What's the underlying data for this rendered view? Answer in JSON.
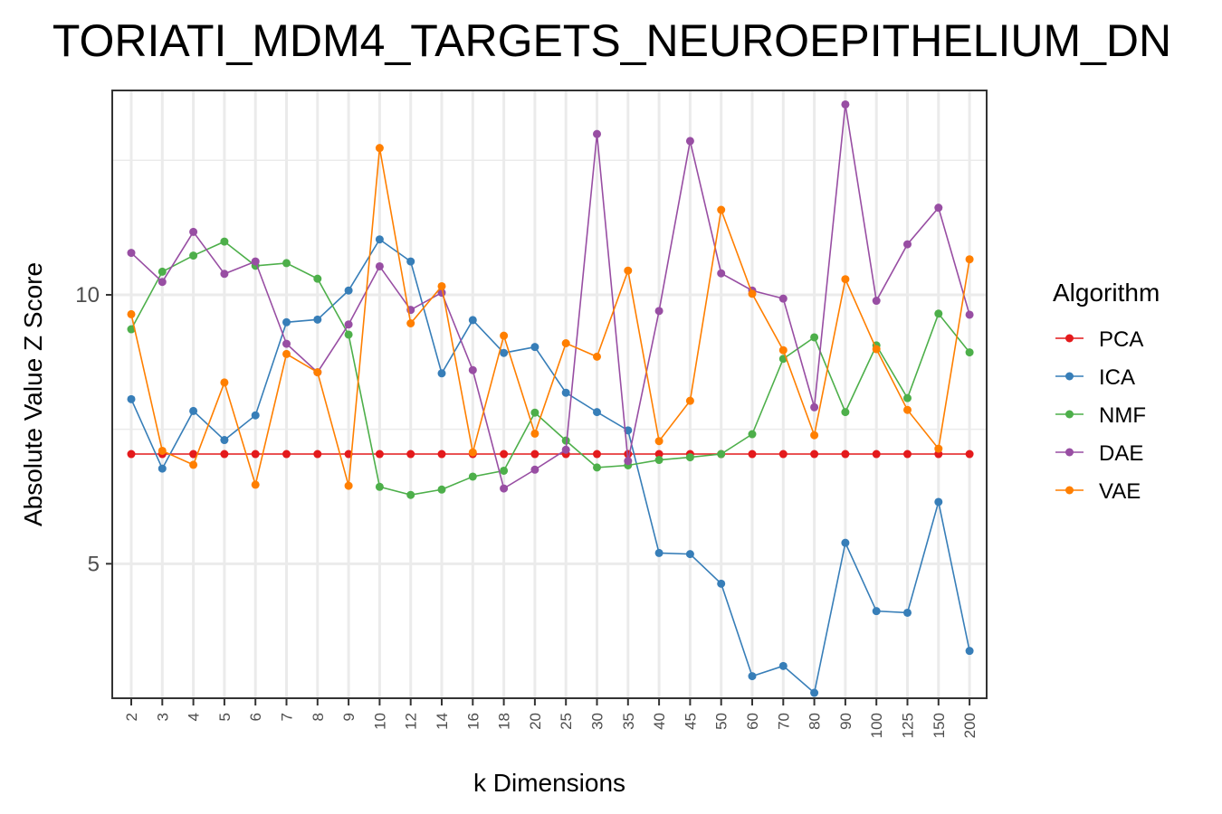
{
  "chart_data": {
    "type": "line",
    "title": "TORIATI_MDM4_TARGETS_NEUROEPITHELIUM_DN",
    "xlabel": "k Dimensions",
    "ylabel": "Absolute Value Z Score",
    "categories": [
      "2",
      "3",
      "4",
      "5",
      "6",
      "7",
      "8",
      "9",
      "10",
      "12",
      "14",
      "16",
      "18",
      "20",
      "25",
      "30",
      "35",
      "40",
      "45",
      "50",
      "60",
      "70",
      "80",
      "90",
      "100",
      "125",
      "150",
      "200"
    ],
    "ylim": [
      2.5,
      13.8
    ],
    "yticks": [
      5,
      10
    ],
    "ytick_labels": [
      "5",
      "10"
    ],
    "grid": true,
    "legend_title": "Algorithm",
    "legend_position": "right",
    "series": [
      {
        "name": "PCA",
        "color": "#e41a1c",
        "values": [
          7.04,
          7.04,
          7.04,
          7.04,
          7.04,
          7.04,
          7.04,
          7.04,
          7.04,
          7.04,
          7.04,
          7.04,
          7.04,
          7.04,
          7.04,
          7.04,
          7.04,
          7.04,
          7.04,
          7.04,
          7.04,
          7.04,
          7.04,
          7.04,
          7.04,
          7.04,
          7.04,
          7.04
        ]
      },
      {
        "name": "ICA",
        "color": "#377eb8",
        "values": [
          8.06,
          6.77,
          7.84,
          7.3,
          7.76,
          9.49,
          9.54,
          10.08,
          11.03,
          10.62,
          8.54,
          9.53,
          8.92,
          9.03,
          8.18,
          7.82,
          7.48,
          5.2,
          5.18,
          4.63,
          2.91,
          3.1,
          2.6,
          5.39,
          4.12,
          4.09,
          6.15,
          3.38
        ]
      },
      {
        "name": "NMF",
        "color": "#4daf4a",
        "values": [
          9.36,
          10.43,
          10.73,
          10.99,
          10.54,
          10.59,
          10.3,
          9.26,
          6.43,
          6.28,
          6.38,
          6.62,
          6.73,
          7.81,
          7.29,
          6.79,
          6.83,
          6.93,
          6.98,
          7.04,
          7.41,
          8.81,
          9.21,
          7.82,
          9.06,
          8.08,
          9.65,
          8.93
        ]
      },
      {
        "name": "DAE",
        "color": "#984ea3",
        "values": [
          10.78,
          10.24,
          11.17,
          10.39,
          10.62,
          9.09,
          8.56,
          9.45,
          10.53,
          9.72,
          10.04,
          8.6,
          6.4,
          6.75,
          7.12,
          12.99,
          6.91,
          9.7,
          12.86,
          10.4,
          10.08,
          9.93,
          7.91,
          13.54,
          9.89,
          10.94,
          11.62,
          9.63
        ]
      },
      {
        "name": "VAE",
        "color": "#ff7f00",
        "values": [
          9.64,
          7.1,
          6.84,
          8.37,
          6.47,
          8.9,
          8.56,
          6.45,
          12.73,
          9.47,
          10.16,
          7.07,
          9.24,
          7.42,
          9.1,
          8.85,
          10.45,
          7.28,
          8.03,
          11.58,
          10.02,
          8.97,
          7.39,
          10.29,
          8.99,
          7.86,
          7.14,
          10.66
        ]
      }
    ]
  }
}
